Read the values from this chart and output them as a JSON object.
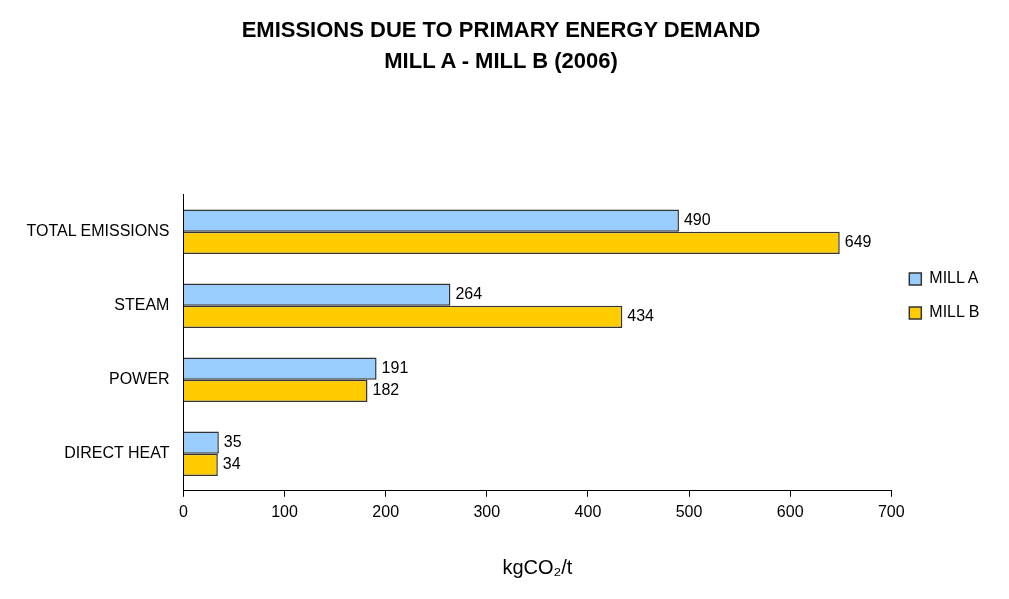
{
  "chart_data": {
    "type": "bar",
    "orientation": "horizontal",
    "title": "EMISSIONS DUE TO PRIMARY ENERGY DEMAND",
    "subtitle": "MILL A - MILL B (2006)",
    "xlabel": "kgCO₂/t",
    "categories": [
      "TOTAL EMISSIONS",
      "STEAM",
      "POWER",
      "DIRECT HEAT"
    ],
    "series": [
      {
        "name": "MILL A",
        "color": "#99ccff",
        "values": [
          490,
          264,
          191,
          35
        ]
      },
      {
        "name": "MILL B",
        "color": "#ffcc00",
        "values": [
          649,
          434,
          182,
          34
        ]
      }
    ],
    "xlim": [
      0,
      700
    ],
    "xticks": [
      0,
      100,
      200,
      300,
      400,
      500,
      600,
      700
    ],
    "grid": false,
    "legend": "right",
    "data_labels": true
  }
}
